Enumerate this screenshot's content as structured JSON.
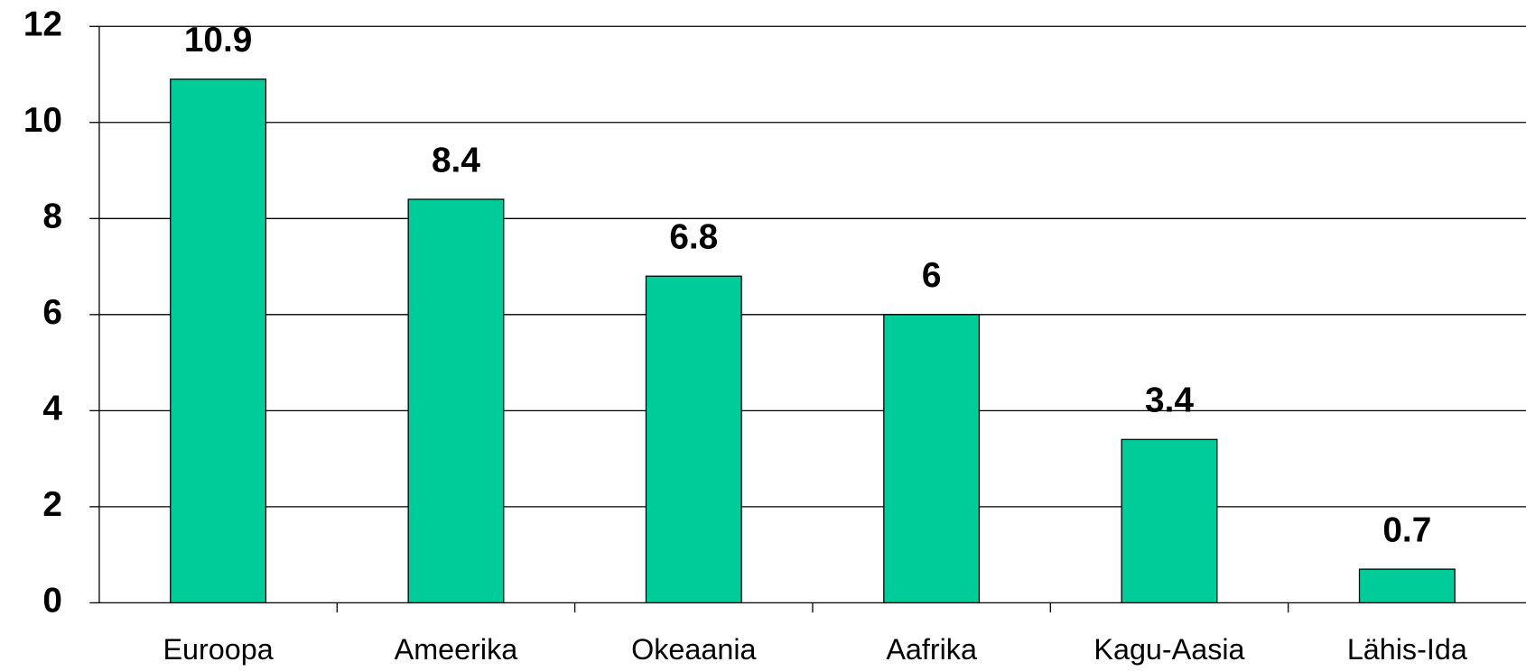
{
  "chart_data": {
    "type": "bar",
    "categories": [
      "Euroopa",
      "Ameerika",
      "Okeaania",
      "Aafrika",
      "Kagu-Aasia",
      "Lähis-Ida"
    ],
    "values": [
      10.9,
      8.4,
      6.8,
      6,
      3.4,
      0.7
    ],
    "color": "#00cc99",
    "ylim": [
      0,
      12
    ],
    "yticks": [
      0,
      2,
      4,
      6,
      8,
      10,
      12
    ],
    "grid": true
  }
}
